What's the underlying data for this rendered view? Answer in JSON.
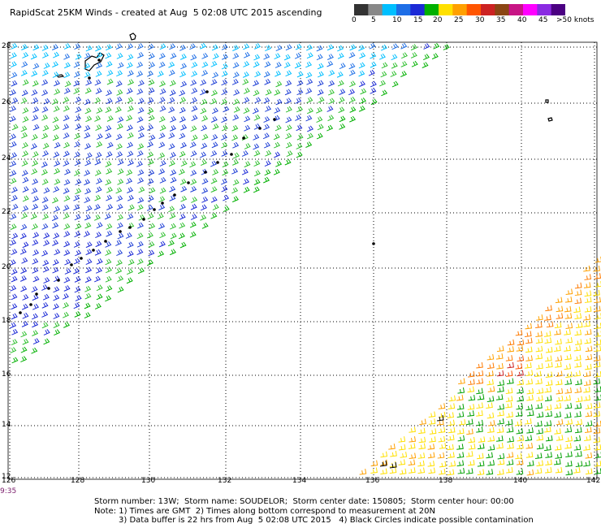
{
  "title": "RapidScat 25KM Winds - created at Aug  5 02:08 UTC 2015 ascending",
  "wind_scale": {
    "labels": [
      "0",
      "5",
      "10",
      "15",
      "20",
      "25",
      "30",
      "35",
      "40",
      "45",
      ">50 knots"
    ],
    "colors": [
      "#333333",
      "#888888",
      "#00bfff",
      "#1e6ee6",
      "#1c2ad6",
      "#00b000",
      "#ffe000",
      "#ffa000",
      "#ff5500",
      "#cc2222",
      "#8b4513",
      "#c71585",
      "#ff00ff",
      "#8a2be2",
      "#4b0082"
    ]
  },
  "map": {
    "lat_labels": [
      "28",
      "26",
      "24",
      "22",
      "20",
      "18",
      "16",
      "14",
      "12"
    ],
    "lon_labels": [
      "126",
      "128",
      "130",
      "132",
      "134",
      "136",
      "138",
      "140",
      "142"
    ],
    "time_label": "9:35",
    "grid": "dotted"
  },
  "footer": {
    "line1": "Storm number: 13W;  Storm name: SOUDELOR;  Storm center date: 150805;  Storm center hour: 00:00",
    "line2": "Note: 1) Times are GMT  2) Times along bottom correspond to measurement at 20N",
    "line3": "3) Data buffer is 22 hrs from Aug  5 02:08 UTC 2015   4) Black Circles indicate possible contamination"
  }
}
